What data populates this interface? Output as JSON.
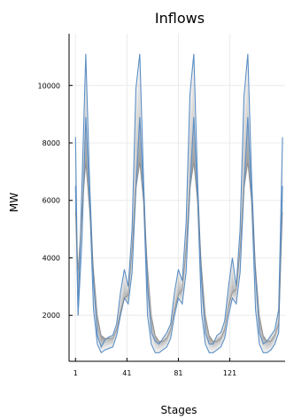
{
  "chart_data": {
    "type": "area",
    "title": "Inflows",
    "xlabel": "Stages",
    "ylabel": "MW",
    "xlim": [
      -4,
      164
    ],
    "ylim": [
      400,
      11800
    ],
    "xticks": [
      1,
      41,
      81,
      121
    ],
    "yticks": [
      2000,
      4000,
      6000,
      8000,
      10000
    ],
    "grid": true,
    "x": [
      1,
      3,
      6,
      9,
      12,
      15,
      18,
      21,
      24,
      27,
      30,
      33,
      36,
      39,
      42,
      45,
      48,
      51,
      54,
      57,
      60,
      63,
      66,
      69,
      72,
      75,
      78,
      81,
      84,
      87,
      90,
      93,
      96,
      99,
      102,
      105,
      108,
      111,
      114,
      117,
      120,
      123,
      126,
      129,
      132,
      135,
      138,
      141,
      144,
      147,
      150,
      153,
      156,
      159,
      162
    ],
    "series": [
      {
        "values": [
          8200,
          2000,
          6500,
          11100,
          6600,
          3200,
          1300,
          900,
          1150,
          1250,
          1300,
          1700,
          2800,
          3600,
          3000,
          5000,
          9900,
          11100,
          6600,
          3000,
          1400,
          1100,
          1000,
          1200,
          1400,
          1700,
          2800,
          3600,
          3200,
          5200,
          9700,
          11100,
          6600,
          3200,
          1400,
          1000,
          1000,
          1300,
          1400,
          1800,
          3000,
          4000,
          3000,
          5000,
          9600,
          11100,
          6700,
          3400,
          1400,
          1000,
          1100,
          1300,
          1500,
          2200,
          8200
        ]
      },
      {
        "values": [
          5600,
          3600,
          5600,
          7300,
          5600,
          3600,
          2000,
          1300,
          1200,
          1200,
          1200,
          1500,
          2100,
          2600,
          2700,
          4300,
          6400,
          7300,
          5900,
          3700,
          2000,
          1300,
          1100,
          1100,
          1200,
          1500,
          2200,
          2700,
          2900,
          4300,
          6400,
          7300,
          5900,
          3700,
          2000,
          1300,
          1100,
          1100,
          1200,
          1500,
          2300,
          2800,
          2900,
          4300,
          6400,
          7300,
          5900,
          3700,
          2000,
          1300,
          1100,
          1100,
          1300,
          1700,
          5600
        ]
      },
      {
        "values": [
          6500,
          2000,
          4600,
          8900,
          6000,
          2200,
          1000,
          700,
          800,
          850,
          900,
          1300,
          2000,
          2600,
          2400,
          3500,
          6400,
          8900,
          6000,
          2000,
          1000,
          700,
          700,
          800,
          900,
          1200,
          2000,
          2600,
          2400,
          3500,
          6400,
          8900,
          6000,
          2100,
          1000,
          700,
          700,
          800,
          900,
          1200,
          2000,
          2600,
          2400,
          3500,
          6400,
          8900,
          6000,
          2200,
          1000,
          700,
          700,
          800,
          1000,
          1400,
          6500
        ]
      }
    ]
  }
}
